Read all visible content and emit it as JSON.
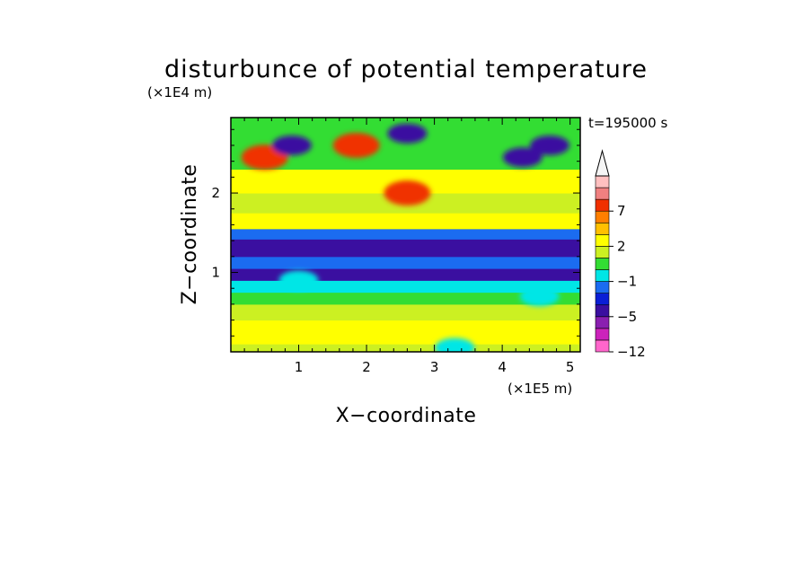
{
  "chart_data": {
    "type": "heatmap",
    "title": "disturbunce of potential temperature",
    "xlabel": "X−coordinate",
    "ylabel": "Z−coordinate",
    "x_scale_label": "(×1E5 m)",
    "y_scale_label": "(×1E4 m)",
    "time_label": "t=195000 s",
    "xlim": [
      0,
      5.15
    ],
    "ylim": [
      0,
      2.95
    ],
    "x_ticks": [
      1,
      2,
      3,
      4,
      5
    ],
    "y_ticks": [
      1,
      2
    ],
    "colorbar": {
      "labels": [
        {
          "value": 7,
          "text": "7"
        },
        {
          "value": 2,
          "text": "2"
        },
        {
          "value": -1,
          "text": "−1"
        },
        {
          "value": -5,
          "text": "−5"
        },
        {
          "value": -12,
          "text": "−12"
        }
      ],
      "levels": [
        {
          "color": "#ff66cc"
        },
        {
          "color": "#cc22bb"
        },
        {
          "color": "#8a1fb0"
        },
        {
          "color": "#3a0fa0"
        },
        {
          "color": "#0a1fd6"
        },
        {
          "color": "#1b6cf0"
        },
        {
          "color": "#00e6e6"
        },
        {
          "color": "#33dd33"
        },
        {
          "color": "#ccf022"
        },
        {
          "color": "#ffff00"
        },
        {
          "color": "#ffc000"
        },
        {
          "color": "#ff7f00"
        },
        {
          "color": "#f03000"
        },
        {
          "color": "#f08080"
        },
        {
          "color": "#ffc0c0"
        }
      ],
      "extend_max_color": "#f5f5f5"
    },
    "field_bands": [
      {
        "z_range": [
          0,
          0.1
        ],
        "value": 1.5
      },
      {
        "z_range": [
          0.1,
          0.4
        ],
        "value": 2.5
      },
      {
        "z_range": [
          0.4,
          0.6
        ],
        "value": 1.5
      },
      {
        "z_range": [
          0.6,
          0.75
        ],
        "value": 0.5
      },
      {
        "z_range": [
          0.75,
          0.9
        ],
        "value": -0.5
      },
      {
        "z_range": [
          0.9,
          1.05
        ],
        "value": -4.5
      },
      {
        "z_range": [
          1.05,
          1.2
        ],
        "value": -1.5
      },
      {
        "z_range": [
          1.2,
          1.42
        ],
        "value": -4.5
      },
      {
        "z_range": [
          1.42,
          1.55
        ],
        "value": -1.5
      },
      {
        "z_range": [
          1.55,
          1.75
        ],
        "value": 2.5
      },
      {
        "z_range": [
          1.75,
          2.0
        ],
        "value": 1.5
      },
      {
        "z_range": [
          2.0,
          2.3
        ],
        "value": 3.5
      },
      {
        "z_range": [
          2.3,
          2.95
        ],
        "value": 0.5
      }
    ],
    "field_features": [
      {
        "x": 0.5,
        "z": 2.45,
        "value": 7.5
      },
      {
        "x": 1.85,
        "z": 2.6,
        "value": 7.5
      },
      {
        "x": 2.6,
        "z": 2.0,
        "value": 7.5
      },
      {
        "x": 0.9,
        "z": 2.6,
        "value": -4.5
      },
      {
        "x": 2.6,
        "z": 2.75,
        "value": -4.5
      },
      {
        "x": 4.3,
        "z": 2.45,
        "value": -4.5
      },
      {
        "x": 4.7,
        "z": 2.6,
        "value": -4.5
      },
      {
        "x": 3.3,
        "z": 0.05,
        "value": -0.5
      },
      {
        "x": 4.55,
        "z": 0.7,
        "value": -0.5
      },
      {
        "x": 1.0,
        "z": 0.9,
        "value": -0.5
      }
    ]
  }
}
